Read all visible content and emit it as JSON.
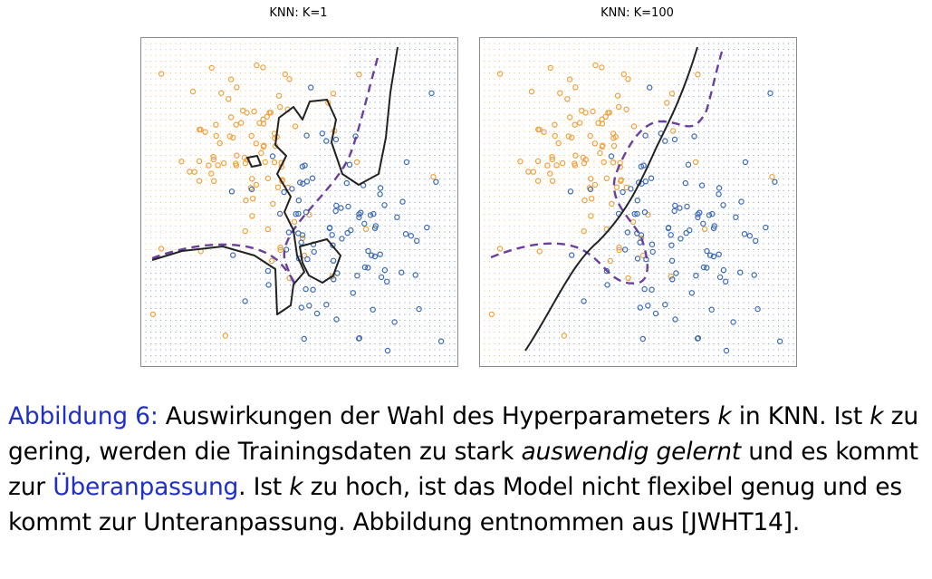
{
  "figure": {
    "panel_left_title": "KNN: K=1",
    "panel_right_title": "KNN: K=100"
  },
  "colors": {
    "class_orange": "#f0a03c",
    "class_blue": "#3b6ab8",
    "knn_boundary": "#222222",
    "bayes_boundary": "#6a3fa0"
  },
  "caption": {
    "label": "Abbildung 6:",
    "t1": " Auswirkungen der Wahl des Hyperparameters ",
    "k1": "k",
    "t2": " in KNN. Ist ",
    "k2": "k",
    "t3": " zu gering, werden die Trainingsdaten zu stark ",
    "em": "auswendig gelernt",
    "t4": " und es kommt zur ",
    "link": "Überanpassung",
    "t5": ". Ist ",
    "k3": "k",
    "t6": " zu hoch, ist das Model nicht flexibel genug und es kommt zur Unteranpassung. Abbildung entnommen aus [JWHT14]."
  }
}
